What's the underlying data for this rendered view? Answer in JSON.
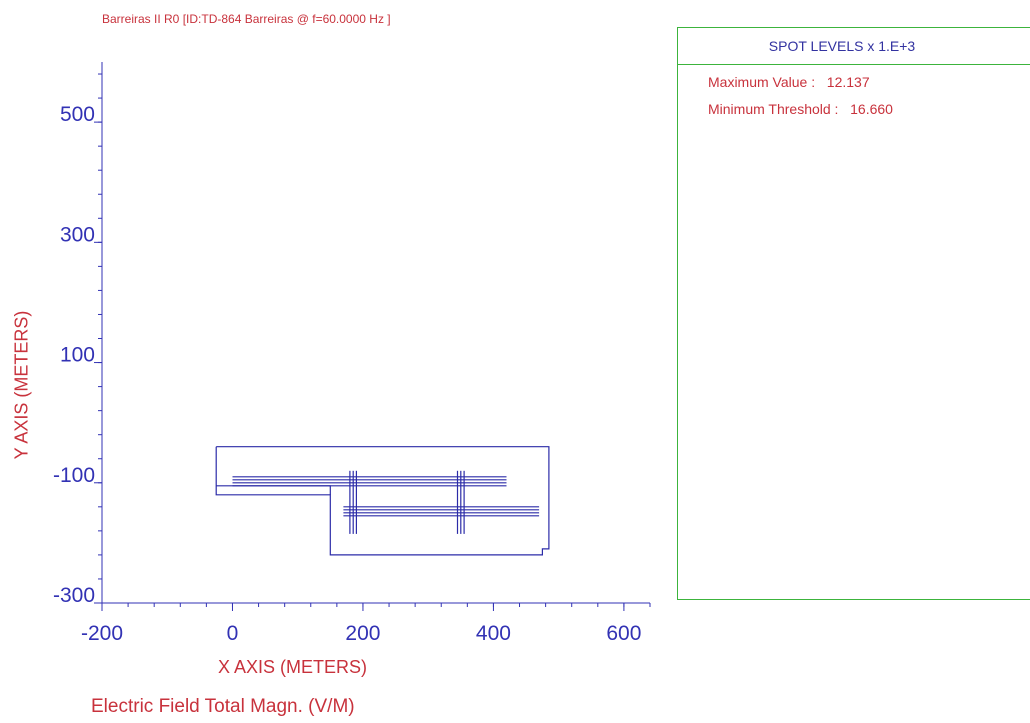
{
  "title": "Barreiras II R0 [ID:TD-864 Barreiras  @ f=60.0000 Hz ]",
  "caption": "Electric Field Total Magn. (V/M)",
  "panel": {
    "heading": "SPOT LEVELS x 1.E+3",
    "max_label": "Maximum Value :",
    "max_value": "12.137",
    "min_label": "Minimum Threshold :",
    "min_value": "16.660"
  },
  "colors": {
    "axis": "#3232b4",
    "text_red": "#c8323c",
    "panel_border": "#3cb43c",
    "drawing": "#2b2ba8"
  },
  "chart_data": {
    "type": "line",
    "xlabel": "X AXIS  (METERS)",
    "ylabel": "Y AXIS  (METERS)",
    "xlim": [
      -200,
      640
    ],
    "ylim": [
      -300,
      600
    ],
    "x_ticks": [
      -200,
      0,
      200,
      400,
      600
    ],
    "y_ticks": [
      -300,
      -100,
      100,
      300,
      500
    ],
    "series": [
      {
        "points": [
          [
            -25,
            -40
          ],
          [
            485,
            -40
          ],
          [
            485,
            -210
          ],
          [
            475,
            -210
          ],
          [
            475,
            -220
          ],
          [
            150,
            -220
          ],
          [
            150,
            -120
          ],
          [
            -25,
            -120
          ],
          [
            -25,
            -40
          ]
        ]
      },
      {
        "points": [
          [
            -25,
            -105
          ],
          [
            150,
            -105
          ],
          [
            150,
            -120
          ]
        ]
      },
      {
        "points": [
          [
            0,
            -90
          ],
          [
            420,
            -90
          ]
        ]
      },
      {
        "points": [
          [
            0,
            -95
          ],
          [
            420,
            -95
          ]
        ]
      },
      {
        "points": [
          [
            0,
            -100
          ],
          [
            420,
            -100
          ]
        ]
      },
      {
        "points": [
          [
            0,
            -105
          ],
          [
            420,
            -105
          ]
        ]
      },
      {
        "points": [
          [
            170,
            -140
          ],
          [
            470,
            -140
          ]
        ]
      },
      {
        "points": [
          [
            170,
            -145
          ],
          [
            470,
            -145
          ]
        ]
      },
      {
        "points": [
          [
            170,
            -150
          ],
          [
            470,
            -150
          ]
        ]
      },
      {
        "points": [
          [
            170,
            -155
          ],
          [
            470,
            -155
          ]
        ]
      },
      {
        "points": [
          [
            180,
            -80
          ],
          [
            180,
            -185
          ]
        ]
      },
      {
        "points": [
          [
            185,
            -80
          ],
          [
            185,
            -185
          ]
        ]
      },
      {
        "points": [
          [
            190,
            -80
          ],
          [
            190,
            -185
          ]
        ]
      },
      {
        "points": [
          [
            345,
            -80
          ],
          [
            345,
            -185
          ]
        ]
      },
      {
        "points": [
          [
            350,
            -80
          ],
          [
            350,
            -185
          ]
        ]
      },
      {
        "points": [
          [
            355,
            -80
          ],
          [
            355,
            -185
          ]
        ]
      }
    ]
  }
}
